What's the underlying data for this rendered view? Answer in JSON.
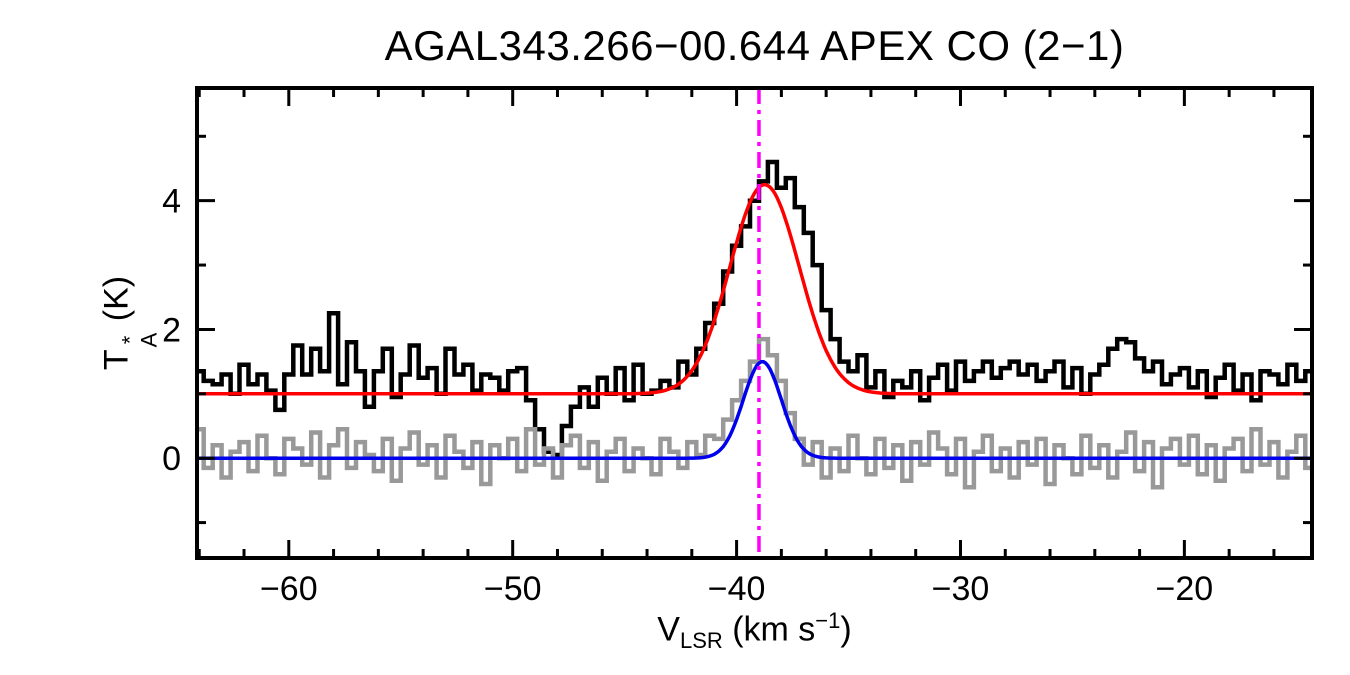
{
  "labels": {
    "y_base": "T",
    "y_sup": "*",
    "y_sub": "A",
    "y_rest": " (K)",
    "x_base": "V",
    "x_sub": "LSR",
    "x_mid": " (km s",
    "x_sup": "−1",
    "x_end": ")"
  },
  "chart_data": {
    "type": "line",
    "title": "AGAL343.266−00.644  APEX CO (2−1)",
    "xlabel": "V_LSR (km s^-1)",
    "ylabel": "T_A^* (K)",
    "xlim": [
      -64.1,
      -14.3
    ],
    "ylim": [
      -1.55,
      5.75
    ],
    "x_ticks": [
      -60,
      -50,
      -40,
      -30,
      -20
    ],
    "y_ticks": [
      0,
      2,
      4
    ],
    "x_minor_step": 2,
    "y_minor_step": 1,
    "grid": false,
    "legend": "none",
    "x_start": -64.0,
    "x_step": 0.4,
    "series": [
      {
        "name": "observed CO (2-1) spectrum (offset +1 K)",
        "color": "#000000",
        "style": "histogram",
        "values": [
          1.35,
          1.2,
          1.15,
          1.3,
          1.0,
          1.45,
          1.15,
          1.3,
          1.05,
          0.75,
          1.3,
          1.75,
          1.3,
          1.7,
          1.35,
          2.25,
          1.15,
          1.8,
          1.35,
          0.8,
          1.35,
          1.7,
          0.95,
          1.3,
          1.75,
          1.25,
          1.4,
          1.0,
          1.7,
          1.3,
          1.45,
          1.05,
          1.3,
          1.25,
          1.05,
          1.35,
          1.4,
          0.9,
          0.45,
          0.1,
          0.05,
          0.5,
          0.8,
          1.1,
          0.8,
          1.25,
          1.0,
          1.4,
          0.9,
          1.45,
          1.0,
          1.05,
          1.2,
          1.1,
          1.5,
          1.3,
          1.7,
          2.1,
          2.4,
          2.9,
          3.3,
          3.6,
          4.0,
          4.3,
          4.6,
          4.2,
          4.35,
          3.9,
          3.5,
          3.0,
          2.3,
          1.85,
          1.5,
          1.35,
          1.6,
          1.1,
          1.35,
          0.95,
          1.2,
          1.1,
          1.35,
          0.9,
          1.25,
          1.45,
          1.05,
          1.5,
          1.2,
          1.35,
          1.5,
          1.25,
          1.4,
          1.5,
          1.3,
          1.45,
          1.2,
          1.35,
          1.5,
          1.1,
          1.4,
          1.0,
          1.3,
          1.45,
          1.7,
          1.85,
          1.8,
          1.55,
          1.35,
          1.5,
          1.15,
          1.3,
          1.4,
          1.1,
          1.35,
          0.95,
          1.25,
          1.45,
          1.05,
          1.3,
          0.9,
          1.35,
          1.3,
          1.15,
          1.45,
          1.2,
          1.35,
          1.25
        ]
      },
      {
        "name": "second spectrum at zero baseline",
        "color": "#999999",
        "style": "histogram",
        "values": [
          0.45,
          -0.15,
          0.2,
          -0.3,
          0.1,
          0.25,
          -0.2,
          0.35,
          0.0,
          -0.25,
          0.3,
          0.15,
          -0.1,
          0.4,
          -0.3,
          0.2,
          0.45,
          -0.15,
          0.25,
          0.05,
          -0.2,
          0.3,
          -0.35,
          0.15,
          0.4,
          -0.1,
          0.2,
          -0.3,
          0.35,
          0.1,
          -0.15,
          0.25,
          -0.4,
          0.2,
          0.0,
          0.3,
          -0.2,
          0.45,
          -0.1,
          0.15,
          -0.3,
          0.2,
          0.35,
          -0.15,
          0.25,
          -0.35,
          0.1,
          0.3,
          -0.2,
          0.15,
          0.0,
          -0.25,
          0.3,
          0.1,
          -0.15,
          0.25,
          0.05,
          0.35,
          0.3,
          0.6,
          0.9,
          1.2,
          1.5,
          1.85,
          1.6,
          1.2,
          0.7,
          0.3,
          -0.1,
          0.25,
          -0.3,
          0.15,
          -0.2,
          0.35,
          0.0,
          -0.25,
          0.3,
          -0.15,
          0.2,
          -0.35,
          0.25,
          -0.1,
          0.4,
          0.15,
          -0.25,
          0.3,
          -0.45,
          0.1,
          0.35,
          -0.2,
          0.15,
          -0.3,
          0.25,
          -0.1,
          0.3,
          -0.4,
          0.2,
          0.0,
          -0.25,
          0.35,
          -0.15,
          0.2,
          -0.3,
          0.1,
          0.4,
          -0.2,
          0.25,
          -0.45,
          0.15,
          0.3,
          -0.1,
          0.35,
          -0.25,
          0.2,
          -0.35,
          0.15,
          0.3,
          -0.2,
          0.45,
          -0.1,
          0.25,
          -0.3,
          0.1,
          0.35,
          -0.15,
          0.2
        ]
      },
      {
        "name": "gaussian fit to observed spectrum",
        "color": "#ff0000",
        "style": "gaussian",
        "baseline": 1.0,
        "amplitude": 3.25,
        "center": -38.75,
        "sigma": 1.55
      },
      {
        "name": "gaussian fit to zero-baseline spectrum",
        "color": "#0000ee",
        "style": "gaussian",
        "baseline": 0.0,
        "amplitude": 1.5,
        "center": -38.85,
        "sigma": 0.85
      }
    ],
    "vline": {
      "x": -39.0,
      "color": "#ff00ff",
      "style": "dash-dot",
      "label": "fitted V_LSR marker"
    }
  }
}
